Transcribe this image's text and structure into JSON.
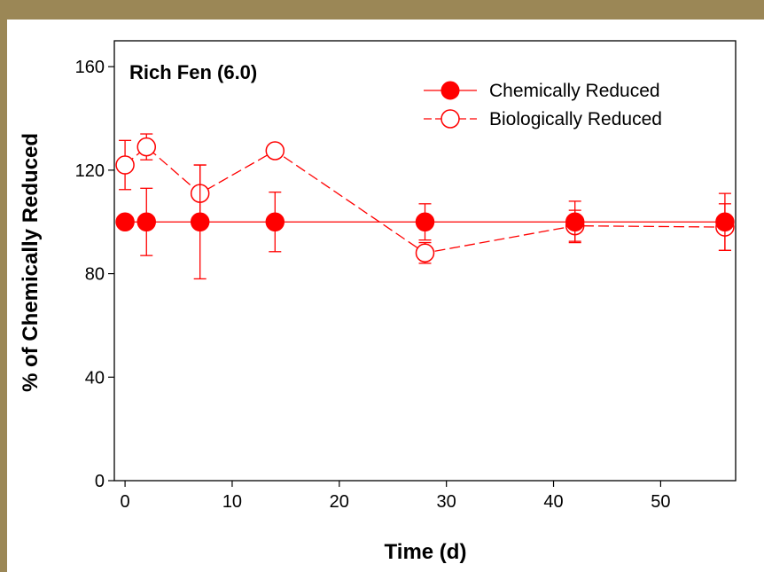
{
  "colors": {
    "frame": "#9b8756",
    "series": "#ff0000",
    "axis": "#000000",
    "background": "#ffffff"
  },
  "chart_data": {
    "type": "scatter",
    "title": "Rich Fen (6.0)",
    "xlabel": "Time (d)",
    "ylabel": "% of Chemically Reduced",
    "xlim": [
      -1,
      57
    ],
    "ylim": [
      0,
      170
    ],
    "xticks": [
      0,
      10,
      20,
      30,
      40,
      50
    ],
    "yticks": [
      0,
      40,
      80,
      120,
      160
    ],
    "xtick_labels": [
      "0",
      "10",
      "20",
      "30",
      "40",
      "50"
    ],
    "ytick_labels": [
      "0",
      "40",
      "80",
      "120",
      "160"
    ],
    "grid": false,
    "legend_position": "top-right",
    "series": [
      {
        "name": "Chemically Reduced",
        "marker": "filled-circle",
        "line": "solid",
        "x": [
          0,
          2,
          7,
          14,
          28,
          42,
          56
        ],
        "y": [
          100,
          100,
          100,
          100,
          100,
          100,
          100
        ],
        "err": [
          0,
          13,
          22,
          11.5,
          7,
          8,
          11
        ]
      },
      {
        "name": "Biologically Reduced",
        "marker": "open-circle",
        "line": "dashed",
        "x": [
          0,
          2,
          7,
          14,
          28,
          42,
          56
        ],
        "y": [
          122,
          129,
          111,
          127.5,
          88,
          98.5,
          98
        ],
        "err": [
          9.5,
          5,
          11,
          0,
          4,
          6,
          9
        ]
      }
    ]
  }
}
